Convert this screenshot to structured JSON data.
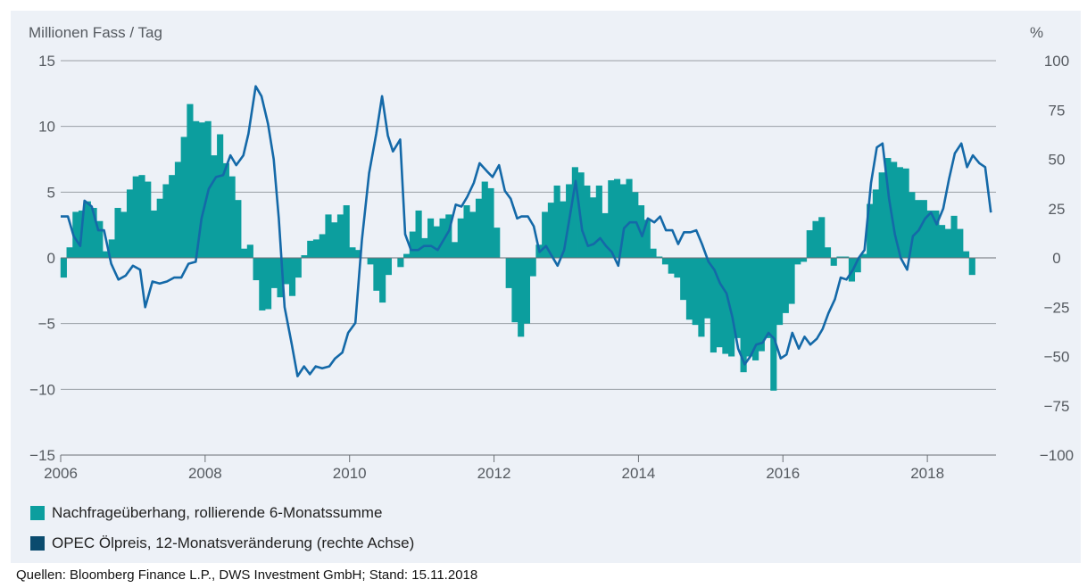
{
  "chart_data": {
    "type": "bar",
    "left_axis_unit": "Millionen Fass / Tag",
    "right_axis_unit": "%",
    "left_ylim": [
      -15,
      15
    ],
    "right_ylim": [
      -100,
      100
    ],
    "left_ticks": [
      "15",
      "10",
      "5",
      "0",
      "−5",
      "−10",
      "−15"
    ],
    "right_ticks": [
      "100",
      "75",
      "50",
      "25",
      "0",
      "−25",
      "−50",
      "−75",
      "−100"
    ],
    "x_ticks": [
      "2006",
      "2008",
      "2010",
      "2012",
      "2014",
      "2016",
      "2018"
    ],
    "xlim": [
      2006.0,
      2018.95
    ],
    "grid": "horizontal",
    "colors": {
      "bars": "#0c9e9e",
      "line": "#1469a8",
      "line_legend": "#0a4b6e",
      "grid": "#9aa0a6"
    },
    "series": [
      {
        "name": "Nachfrageüberhang, rollierende 6-Monatssumme",
        "type": "bar",
        "axis": "left",
        "start": 2006.0,
        "step": 0.0833,
        "values": [
          -1.5,
          0.8,
          3.5,
          3.6,
          4.3,
          3.8,
          2.8,
          0.5,
          1.4,
          3.8,
          3.5,
          5.2,
          6.2,
          6.3,
          5.8,
          3.6,
          4.5,
          5.6,
          6.3,
          7.3,
          9.2,
          11.7,
          10.4,
          10.3,
          10.4,
          7.8,
          9.4,
          7.2,
          6.2,
          4.4,
          0.7,
          1.0,
          -1.7,
          -4.0,
          -3.9,
          -2.3,
          -3.0,
          -2.0,
          -2.9,
          -1.5,
          0.2,
          1.3,
          1.4,
          1.8,
          3.3,
          2.7,
          3.3,
          4.0,
          0.8,
          0.6,
          0.0,
          -0.5,
          -2.5,
          -3.4,
          -1.3,
          0.0,
          -0.7,
          0.3,
          2.0,
          3.6,
          1.5,
          3.0,
          2.4,
          3.0,
          3.3,
          1.2,
          3.0,
          4.0,
          3.5,
          4.5,
          5.8,
          5.3,
          2.3,
          0.0,
          -2.3,
          -4.9,
          -6.0,
          -5.0,
          -1.4,
          1.0,
          3.5,
          4.2,
          5.5,
          4.3,
          5.6,
          6.9,
          6.5,
          5.5,
          4.6,
          5.5,
          3.4,
          5.9,
          6.0,
          5.6,
          6.0,
          5.0,
          4.0,
          2.9,
          0.7,
          0.1,
          -0.5,
          -1.2,
          -1.5,
          -3.2,
          -4.7,
          -5.1,
          -6.0,
          -4.6,
          -7.2,
          -6.8,
          -7.3,
          -7.5,
          -6.1,
          -8.7,
          -7.5,
          -7.8,
          -7.1,
          -6.1,
          -10.1,
          -5.1,
          -4.2,
          -3.5,
          -0.5,
          -0.3,
          2.1,
          2.8,
          3.1,
          0.8,
          -0.6,
          0.1,
          0.1,
          -1.8,
          -1.1,
          0.3,
          4.1,
          5.2,
          6.5,
          7.6,
          7.3,
          6.9,
          6.8,
          5.0,
          4.4,
          4.4,
          3.6,
          3.6,
          2.5,
          2.2,
          3.2,
          2.2,
          0.5,
          -1.3
        ]
      },
      {
        "name": "OPEC Ölpreis, 12-Monatsveränderung (rechte Achse)",
        "type": "line",
        "axis": "right",
        "points": [
          [
            2006.0,
            21
          ],
          [
            2006.1,
            21
          ],
          [
            2006.18,
            11
          ],
          [
            2006.27,
            6
          ],
          [
            2006.33,
            29
          ],
          [
            2006.43,
            26
          ],
          [
            2006.52,
            14
          ],
          [
            2006.6,
            14
          ],
          [
            2006.7,
            -3
          ],
          [
            2006.8,
            -11
          ],
          [
            2006.9,
            -9
          ],
          [
            2007.0,
            -4
          ],
          [
            2007.1,
            -6
          ],
          [
            2007.17,
            -25
          ],
          [
            2007.27,
            -12
          ],
          [
            2007.37,
            -13
          ],
          [
            2007.47,
            -12
          ],
          [
            2007.57,
            -10
          ],
          [
            2007.67,
            -10
          ],
          [
            2007.77,
            -3
          ],
          [
            2007.87,
            -2
          ],
          [
            2007.95,
            20
          ],
          [
            2008.05,
            35
          ],
          [
            2008.15,
            41
          ],
          [
            2008.25,
            42
          ],
          [
            2008.35,
            52
          ],
          [
            2008.43,
            47
          ],
          [
            2008.53,
            52
          ],
          [
            2008.6,
            63
          ],
          [
            2008.7,
            87
          ],
          [
            2008.78,
            82
          ],
          [
            2008.87,
            68
          ],
          [
            2008.95,
            50
          ],
          [
            2009.02,
            20
          ],
          [
            2009.1,
            -25
          ],
          [
            2009.2,
            -44
          ],
          [
            2009.28,
            -60
          ],
          [
            2009.37,
            -55
          ],
          [
            2009.45,
            -59
          ],
          [
            2009.53,
            -55
          ],
          [
            2009.62,
            -56
          ],
          [
            2009.72,
            -55
          ],
          [
            2009.8,
            -51
          ],
          [
            2009.9,
            -48
          ],
          [
            2009.98,
            -38
          ],
          [
            2010.08,
            -33
          ],
          [
            2010.17,
            9
          ],
          [
            2010.27,
            43
          ],
          [
            2010.37,
            63
          ],
          [
            2010.45,
            82
          ],
          [
            2010.53,
            62
          ],
          [
            2010.6,
            54
          ],
          [
            2010.7,
            60
          ],
          [
            2010.77,
            12
          ],
          [
            2010.85,
            4
          ],
          [
            2010.95,
            4
          ],
          [
            2011.03,
            6
          ],
          [
            2011.13,
            6
          ],
          [
            2011.22,
            4
          ],
          [
            2011.3,
            9
          ],
          [
            2011.38,
            14
          ],
          [
            2011.47,
            27
          ],
          [
            2011.55,
            26
          ],
          [
            2011.63,
            31
          ],
          [
            2011.72,
            38
          ],
          [
            2011.8,
            48
          ],
          [
            2011.9,
            44
          ],
          [
            2011.98,
            41
          ],
          [
            2012.07,
            47
          ],
          [
            2012.15,
            34
          ],
          [
            2012.23,
            30
          ],
          [
            2012.32,
            20
          ],
          [
            2012.38,
            21
          ],
          [
            2012.47,
            21
          ],
          [
            2012.55,
            16
          ],
          [
            2012.63,
            3
          ],
          [
            2012.72,
            6
          ],
          [
            2012.8,
            1
          ],
          [
            2012.88,
            -4
          ],
          [
            2012.97,
            4
          ],
          [
            2013.05,
            21
          ],
          [
            2013.13,
            39
          ],
          [
            2013.22,
            14
          ],
          [
            2013.3,
            6
          ],
          [
            2013.38,
            7
          ],
          [
            2013.47,
            10
          ],
          [
            2013.55,
            6
          ],
          [
            2013.63,
            3
          ],
          [
            2013.72,
            -4
          ],
          [
            2013.8,
            15
          ],
          [
            2013.88,
            18
          ],
          [
            2013.97,
            18
          ],
          [
            2014.05,
            11
          ],
          [
            2014.13,
            20
          ],
          [
            2014.22,
            18
          ],
          [
            2014.3,
            21
          ],
          [
            2014.38,
            14
          ],
          [
            2014.47,
            14
          ],
          [
            2014.55,
            7
          ],
          [
            2014.63,
            13
          ],
          [
            2014.72,
            13
          ],
          [
            2014.8,
            14
          ],
          [
            2014.88,
            7
          ],
          [
            2014.97,
            -2
          ],
          [
            2015.05,
            -6
          ],
          [
            2015.13,
            -13
          ],
          [
            2015.22,
            -18
          ],
          [
            2015.3,
            -30
          ],
          [
            2015.38,
            -46
          ],
          [
            2015.47,
            -54
          ],
          [
            2015.55,
            -50
          ],
          [
            2015.63,
            -44
          ],
          [
            2015.72,
            -43
          ],
          [
            2015.8,
            -38
          ],
          [
            2015.88,
            -41
          ],
          [
            2015.97,
            -51
          ],
          [
            2016.05,
            -49
          ],
          [
            2016.13,
            -38
          ],
          [
            2016.22,
            -46
          ],
          [
            2016.3,
            -40
          ],
          [
            2016.38,
            -44
          ],
          [
            2016.47,
            -41
          ],
          [
            2016.55,
            -36
          ],
          [
            2016.63,
            -28
          ],
          [
            2016.72,
            -21
          ],
          [
            2016.8,
            -10
          ],
          [
            2016.88,
            -11
          ],
          [
            2016.97,
            -6
          ],
          [
            2017.05,
            0
          ],
          [
            2017.13,
            4
          ],
          [
            2017.22,
            38
          ],
          [
            2017.3,
            56
          ],
          [
            2017.38,
            58
          ],
          [
            2017.47,
            30
          ],
          [
            2017.55,
            12
          ],
          [
            2017.63,
            0
          ],
          [
            2017.72,
            -6
          ],
          [
            2017.8,
            11
          ],
          [
            2017.88,
            14
          ],
          [
            2017.97,
            20
          ],
          [
            2018.05,
            23
          ],
          [
            2018.13,
            17
          ],
          [
            2018.22,
            25
          ],
          [
            2018.3,
            40
          ],
          [
            2018.38,
            53
          ],
          [
            2018.47,
            58
          ],
          [
            2018.55,
            46
          ],
          [
            2018.63,
            52
          ],
          [
            2018.72,
            48
          ],
          [
            2018.8,
            46
          ],
          [
            2018.88,
            23
          ]
        ]
      }
    ]
  },
  "legend": {
    "bars_label": "Nachfrageüberhang, rollierende 6-Monatssumme",
    "line_label": "OPEC Ölpreis, 12-Monatsveränderung (rechte Achse)"
  },
  "source": "Quellen: Bloomberg Finance L.P., DWS Investment GmbH; Stand: 15.11.2018"
}
